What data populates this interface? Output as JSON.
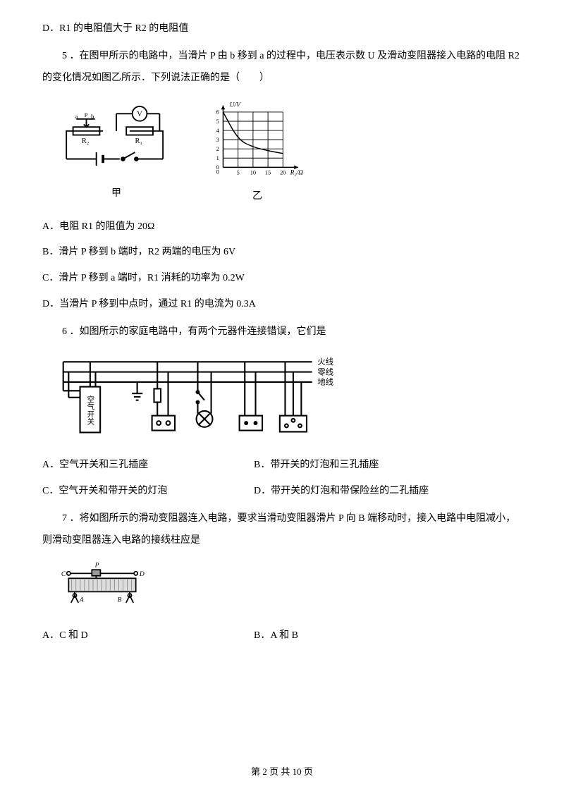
{
  "text": {
    "optD_prev": "D．R1 的电阻值大于 R2 的电阻值",
    "q5_stem": "5 ．在图甲所示的电路中，当滑片 P 由 b 移到 a 的过程中，电压表示数 U 及滑动变阻器接入电路的电阻 R2 的变化情况如图乙所示．下列说法正确的是（　　）",
    "q5_A": "A．电阻 R1 的阻值为 20Ω",
    "q5_B": "B．滑片 P 移到 b 端时，R2 两端的电压为 6V",
    "q5_C": "C．滑片 P 移到 a 端时，R1 消耗的功率为 0.2W",
    "q5_D": "D．当滑片 P 移到中点时，通过 R1 的电流为 0.3A",
    "q6_stem": "6 ．如图所示的家庭电路中，有两个元器件连接错误，它们是",
    "q6_A": "A．空气开关和三孔插座",
    "q6_B": "B．带开关的灯泡和三孔插座",
    "q6_C": "C．空气开关和带开关的灯泡",
    "q6_D": "D．带开关的灯泡和带保险丝的二孔插座",
    "q7_stem": "7 ．将如图所示的滑动变阻器连入电路，要求当滑动变阻器滑片 P 向 B 端移动时，接入电路中电阻减小，则滑动变阻器连入电路的接线柱应是",
    "q7_A": "A．C 和 D",
    "q7_B": "B．A 和 B",
    "fig_jia": "甲",
    "fig_yi": "乙",
    "footer": "第 2 页 共 10 页"
  },
  "circuit": {
    "labels": {
      "V": "V",
      "a": "a",
      "P": "P",
      "b": "b",
      "R1": "R₁",
      "R2": "R₂"
    },
    "stroke": "#000000",
    "fill": "#ffffff"
  },
  "graph": {
    "ytitle": "U/V",
    "xtitle": "R₂/Ω",
    "xticks": [
      "0",
      "5",
      "10",
      "15",
      "20"
    ],
    "yticks": [
      "0",
      "1",
      "2",
      "3",
      "4",
      "5",
      "6"
    ],
    "curve": [
      {
        "x": 0,
        "y": 6.0
      },
      {
        "x": 5,
        "y": 3.0
      },
      {
        "x": 10,
        "y": 2.2
      },
      {
        "x": 15,
        "y": 1.8
      },
      {
        "x": 20,
        "y": 1.5
      }
    ],
    "xlim": [
      0,
      22
    ],
    "ylim": [
      0,
      6
    ],
    "stroke": "#000000",
    "grid": "#000000",
    "line_width": 1.6
  },
  "home_circuit": {
    "labels": {
      "live": "火线",
      "neutral": "零线",
      "ground": "地线",
      "air_switch": "空气开关"
    },
    "stroke": "#000000"
  },
  "rheostat": {
    "labels": {
      "P": "P",
      "A": "A",
      "B": "B",
      "C": "C",
      "D": "D"
    },
    "stroke": "#000000",
    "hatch": "#888888"
  },
  "colors": {
    "text": "#000000",
    "bg": "#ffffff"
  }
}
